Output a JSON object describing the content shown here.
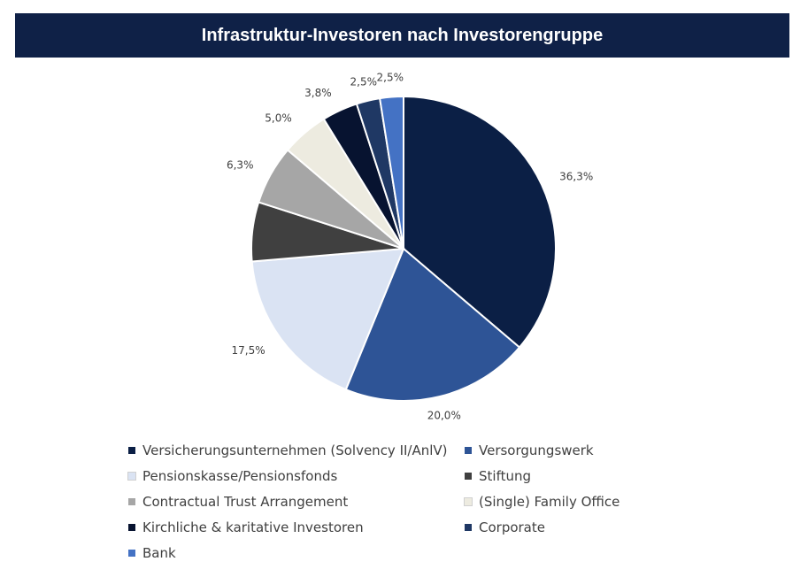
{
  "chart_data": {
    "type": "pie",
    "title": "Infrastruktur-Investoren nach Investorengruppe",
    "categories": [
      "Versicherungsunternehmen (Solvency II/AnlV)",
      "Versorgungswerk",
      "Pensionskasse/Pensionsfonds",
      "Stiftung",
      "Contractual Trust Arrangement",
      "(Single) Family Office",
      "Kirchliche & karitative Investoren",
      "Corporate",
      "Bank"
    ],
    "values": [
      36.3,
      20.0,
      17.5,
      6.3,
      6.3,
      5.0,
      3.8,
      2.5,
      2.5
    ],
    "labels": [
      "36,3%",
      "20,0%",
      "17,5%",
      "",
      "6,3%",
      "5,0%",
      "3,8%",
      "2,5%",
      "2,5%"
    ],
    "colors": [
      "#0b1f45",
      "#2e5496",
      "#dae3f3",
      "#404040",
      "#a6a6a6",
      "#edebe0",
      "#071330",
      "#1f3864",
      "#4472c4"
    ],
    "legend_position": "bottom"
  }
}
